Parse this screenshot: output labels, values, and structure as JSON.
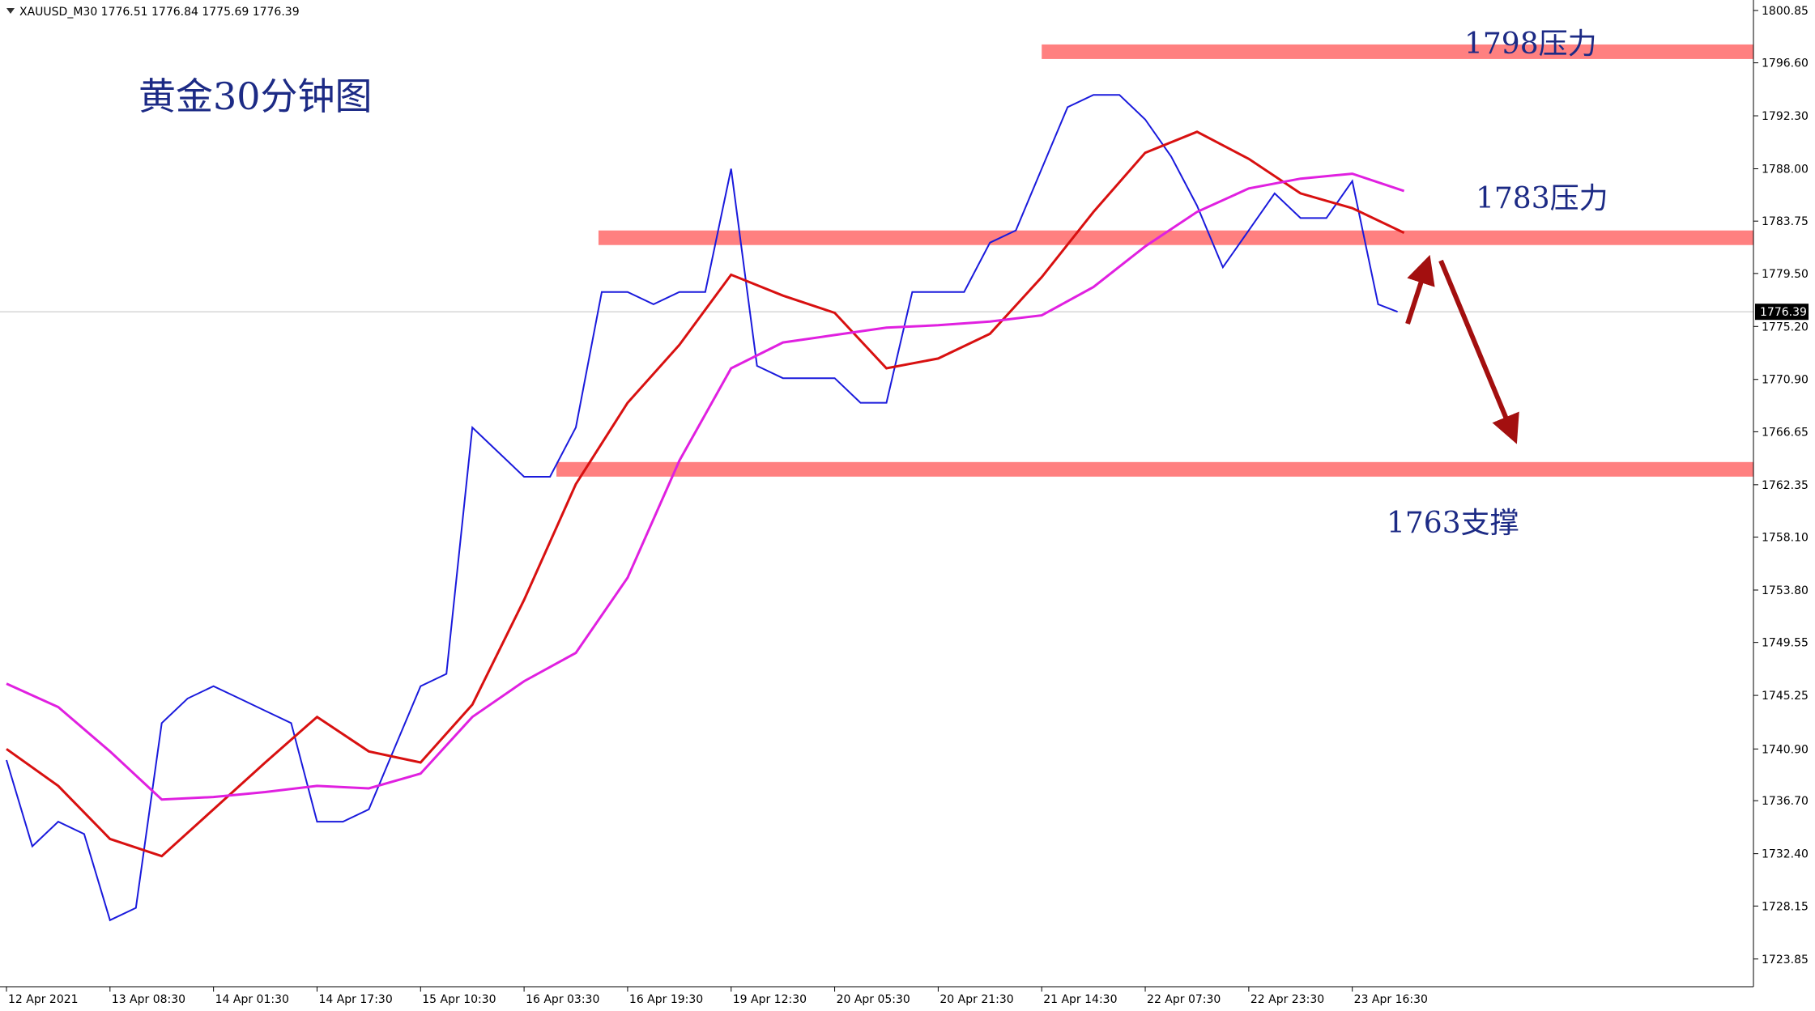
{
  "chart_data": {
    "type": "line",
    "header": "XAUUSD_M30 1776.51 1776.84 1775.69 1776.39",
    "xlim": [
      -2,
      540
    ],
    "ylim": [
      1721.6,
      1801.7
    ],
    "xticks": [
      {
        "value": 0,
        "label": "12 Apr 2021"
      },
      {
        "value": 32,
        "label": "13 Apr 08:30"
      },
      {
        "value": 64,
        "label": "14 Apr 01:30"
      },
      {
        "value": 96,
        "label": "14 Apr 17:30"
      },
      {
        "value": 128,
        "label": "15 Apr 10:30"
      },
      {
        "value": 160,
        "label": "16 Apr 03:30"
      },
      {
        "value": 192,
        "label": "16 Apr 19:30"
      },
      {
        "value": 224,
        "label": "19 Apr 12:30"
      },
      {
        "value": 256,
        "label": "20 Apr 05:30"
      },
      {
        "value": 288,
        "label": "20 Apr 21:30"
      },
      {
        "value": 320,
        "label": "21 Apr 14:30"
      },
      {
        "value": 352,
        "label": "22 Apr 07:30"
      },
      {
        "value": 384,
        "label": "22 Apr 23:30"
      },
      {
        "value": 416,
        "label": "23 Apr 16:30"
      }
    ],
    "yticks": [
      1800.85,
      {
        "value": 1796.6,
        "label": "1796.60"
      },
      {
        "value": 1792.3,
        "label": "1792.30"
      },
      {
        "value": 1788,
        "label": "1788.00"
      },
      1783.75,
      {
        "value": 1779.5,
        "label": "1779.50"
      },
      {
        "value": 1775.2,
        "label": "1775.20"
      },
      {
        "value": 1770.9,
        "label": "1770.90"
      },
      1766.65,
      1762.35,
      {
        "value": 1758.1,
        "label": "1758.10"
      },
      {
        "value": 1753.8,
        "label": "1753.80"
      },
      1749.55,
      1745.25,
      {
        "value": 1740.9,
        "label": "1740.90"
      },
      {
        "value": 1736.7,
        "label": "1736.70"
      },
      {
        "value": 1732.4,
        "label": "1732.40"
      },
      1728.15,
      1723.85
    ],
    "series": [
      {
        "color": "#1a1adc",
        "x": [
          0,
          8,
          16,
          24,
          32,
          40,
          48,
          56,
          64,
          72,
          80,
          88,
          96,
          104,
          112,
          120,
          128,
          136,
          144,
          152,
          160,
          168,
          176,
          184,
          192,
          200,
          208,
          216,
          224,
          232,
          240,
          248,
          256,
          264,
          272,
          280,
          288,
          296,
          304,
          312,
          320,
          328,
          336,
          344,
          352,
          360,
          368,
          376,
          384,
          392,
          400,
          408,
          416,
          424,
          430
        ],
        "values": [
          1740,
          1733,
          1735,
          1734,
          1727,
          1728,
          1743,
          1745,
          1746,
          1745,
          1744,
          1743,
          1735,
          1735,
          1736,
          1741,
          1746,
          1747,
          1767,
          1765,
          1763,
          1763,
          1767,
          1778,
          1778,
          1777,
          1778,
          1778,
          1788,
          1772,
          1771,
          1771,
          1771,
          1769,
          1769,
          1778,
          1778,
          1778,
          1782,
          1783,
          1788,
          1793,
          1794,
          1794,
          1792,
          1789,
          1785,
          1780,
          1783,
          1786,
          1784,
          1784,
          1787,
          1777,
          1776.39
        ]
      },
      {
        "color": "#d81010",
        "x": [
          0,
          16,
          32,
          48,
          64,
          80,
          96,
          112,
          128,
          144,
          160,
          176,
          192,
          208,
          224,
          240,
          256,
          272,
          288,
          304,
          320,
          336,
          352,
          368,
          384,
          400,
          416,
          432
        ],
        "values": [
          1740.9,
          1737.9,
          1733.6,
          1732.2,
          1736,
          1739.8,
          1743.5,
          1740.7,
          1739.8,
          1744.5,
          1753,
          1762.4,
          1769,
          1773.7,
          1779.4,
          1777.7,
          1776.3,
          1771.8,
          1772.6,
          1774.6,
          1779.2,
          1784.5,
          1789.3,
          1791,
          1788.8,
          1786,
          1784.8,
          1782.8
        ]
      },
      {
        "color": "#e020e0",
        "x": [
          0,
          16,
          32,
          48,
          64,
          80,
          96,
          112,
          128,
          144,
          160,
          176,
          192,
          208,
          224,
          240,
          256,
          272,
          288,
          304,
          320,
          336,
          352,
          368,
          384,
          400,
          416,
          432
        ],
        "values": [
          1746.2,
          1744.3,
          1740.7,
          1736.8,
          1737,
          1737.4,
          1737.9,
          1737.7,
          1738.9,
          1743.5,
          1746.4,
          1748.7,
          1754.8,
          1764.3,
          1771.8,
          1773.9,
          1774.5,
          1775.1,
          1775.3,
          1775.6,
          1776.1,
          1778.4,
          1781.7,
          1784.5,
          1786.4,
          1787.2,
          1787.6,
          1786.2
        ]
      }
    ],
    "levels": [
      {
        "value": 1797.5,
        "from": 320,
        "color": "#ff8080"
      },
      {
        "value": 1782.4,
        "from": 183,
        "color": "#ff8080"
      },
      {
        "value": 1763.6,
        "from": 170,
        "color": "#ff8080"
      }
    ],
    "last": 1776.39,
    "annotations": [
      "黄金30分钟图",
      "1798压力",
      "1783压力",
      "1763支撑"
    ]
  }
}
